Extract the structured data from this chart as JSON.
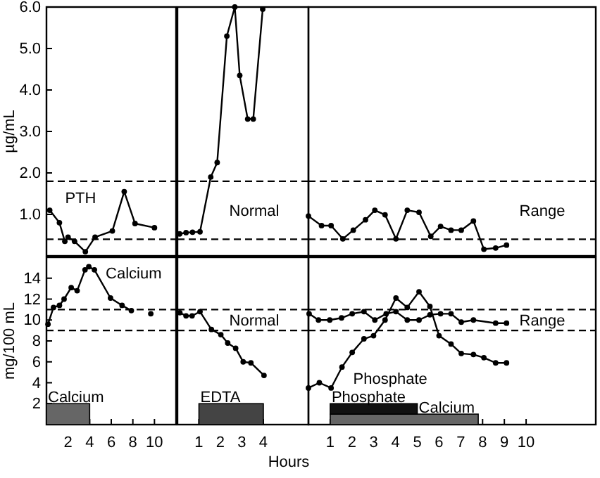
{
  "chart_data": [
    {
      "type": "line",
      "ylabel": "µg/mL",
      "xlim": [
        0,
        12
      ],
      "ylim": [
        0,
        6
      ],
      "yticks": [
        {
          "value": 1,
          "label": "1.0"
        },
        {
          "value": 2,
          "label": "2.0"
        },
        {
          "value": 3,
          "label": "3.0"
        },
        {
          "value": 4,
          "label": "4.0"
        },
        {
          "value": 5,
          "label": "5.0"
        },
        {
          "value": 6,
          "label": "6.0"
        }
      ],
      "tick_labels": "y",
      "marker": "circle",
      "series": [
        {
          "name": "PTH",
          "color": "#000000",
          "x": [
            0.3,
            1.2,
            1.7,
            2.0,
            2.6,
            3.6,
            4.5,
            6.1,
            7.2,
            8.2,
            10.0
          ],
          "values": [
            1.1,
            0.8,
            0.35,
            0.45,
            0.35,
            0.1,
            0.45,
            0.6,
            1.55,
            0.78,
            0.68
          ]
        }
      ],
      "ref_lines": [
        {
          "axis": "y",
          "value": 1.8,
          "line_style": "dashed"
        },
        {
          "axis": "y",
          "value": 0.4,
          "line_style": "dashed"
        }
      ]
    },
    {
      "type": "line",
      "xlim": [
        0,
        6.1
      ],
      "ylim": [
        0,
        6
      ],
      "tick_labels": false,
      "marker": "circle",
      "series": [
        {
          "color": "#000000",
          "x": [
            0.1,
            0.4,
            0.7,
            1.05,
            1.55,
            1.85,
            2.3,
            2.67,
            2.9,
            3.27,
            3.53,
            3.97
          ],
          "values": [
            0.53,
            0.56,
            0.57,
            0.58,
            1.9,
            2.25,
            5.3,
            6.0,
            4.35,
            3.3,
            3.3,
            5.95
          ]
        }
      ],
      "ref_lines": [
        {
          "axis": "y",
          "value": 1.8,
          "line_style": "dashed",
          "label": "Normal"
        },
        {
          "axis": "y",
          "value": 0.4,
          "line_style": "dashed"
        }
      ]
    },
    {
      "type": "line",
      "xlim": [
        0,
        13.2
      ],
      "ylim": [
        0,
        6
      ],
      "tick_labels": false,
      "marker": "circle",
      "series": [
        {
          "color": "#000000",
          "x": [
            0,
            0.6,
            1.04,
            1.58,
            2.06,
            2.62,
            3.05,
            3.52,
            4.02,
            4.54,
            5.08,
            5.62,
            6.07,
            6.55,
            7.02,
            7.58,
            8.06,
            8.6,
            9.1
          ],
          "values": [
            0.96,
            0.73,
            0.73,
            0.41,
            0.62,
            0.87,
            1.1,
            0.99,
            0.41,
            1.1,
            1.05,
            0.47,
            0.71,
            0.62,
            0.62,
            0.84,
            0.16,
            0.19,
            0.26
          ]
        }
      ],
      "ref_lines": [
        {
          "axis": "y",
          "value": 1.8,
          "line_style": "dashed",
          "label": "Range"
        },
        {
          "axis": "y",
          "value": 0.4,
          "line_style": "dashed"
        }
      ]
    },
    {
      "type": "line",
      "ylabel": "mg/100 mL",
      "xlim": [
        0,
        12
      ],
      "ylim": [
        0,
        16
      ],
      "xticks": [
        2,
        4,
        6,
        8,
        10
      ],
      "yticks": [
        2,
        4,
        6,
        8,
        10,
        12,
        14
      ],
      "marker": "circle",
      "series": [
        {
          "name": "Calcium",
          "color": "#000000",
          "x": [
            0.14,
            0.65,
            1.2,
            1.63,
            2.29,
            2.84,
            3.57,
            3.92,
            4.44,
            5.93,
            7.0,
            7.86,
            8.8,
            9.66
          ],
          "values": [
            9.6,
            11.2,
            11.4,
            12.0,
            13.1,
            12.8,
            14.8,
            15.1,
            14.8,
            12.1,
            11.4,
            10.9,
            null,
            10.6
          ]
        }
      ],
      "ref_lines": [
        {
          "axis": "y",
          "value": 11,
          "line_style": "dashed"
        },
        {
          "axis": "y",
          "value": 9,
          "line_style": "dashed"
        }
      ],
      "bands": [
        {
          "axis": "x",
          "from": 0,
          "to": 4,
          "label": "Calcium",
          "color": "#666666"
        }
      ]
    },
    {
      "type": "line",
      "xlabel": "Hours",
      "xlim": [
        0,
        6.1
      ],
      "ylim": [
        0,
        16
      ],
      "xticks": [
        1,
        2,
        3,
        4
      ],
      "tick_labels": "x",
      "marker": "circle",
      "series": [
        {
          "color": "#000000",
          "x": [
            0.11,
            0.4,
            0.68,
            1.05,
            1.58,
            2.02,
            2.34,
            2.71,
            3.06,
            3.42,
            4.03
          ],
          "values": [
            10.7,
            10.4,
            10.4,
            10.8,
            9.1,
            8.6,
            7.8,
            7.3,
            6.0,
            5.9,
            4.7
          ]
        }
      ],
      "ref_lines": [
        {
          "axis": "y",
          "value": 11,
          "line_style": "dashed",
          "label": "Normal"
        },
        {
          "axis": "y",
          "value": 9,
          "line_style": "dashed"
        }
      ],
      "bands": [
        {
          "axis": "x",
          "from": 1,
          "to": 4,
          "label": "EDTA",
          "color": "#444444"
        }
      ]
    },
    {
      "type": "line",
      "xlim": [
        0,
        13.2
      ],
      "ylim": [
        0,
        16
      ],
      "xticks": [
        1,
        2,
        3,
        4,
        5,
        6,
        7,
        8,
        9,
        10
      ],
      "tick_labels": "x",
      "marker": "circle",
      "series": [
        {
          "color": "#000000",
          "x": [
            0.03,
            0.46,
            0.98,
            1.52,
            2.01,
            2.55,
            3.05,
            3.57,
            4.02,
            4.54,
            5.08,
            5.58,
            6.07,
            6.55,
            7.02,
            7.58,
            8.6,
            9.1
          ],
          "values": [
            10.6,
            10.0,
            10.0,
            10.2,
            10.6,
            10.8,
            10.0,
            10.6,
            10.8,
            10.0,
            10.0,
            10.5,
            10.6,
            10.6,
            9.8,
            10.0,
            9.7,
            9.7
          ]
        },
        {
          "name": "Phosphate",
          "color": "#000000",
          "x": [
            0,
            0.5,
            1.04,
            1.54,
            2.01,
            2.55,
            2.99,
            3.52,
            4.02,
            4.54,
            5.08,
            5.58,
            6.0,
            6.55,
            7.02,
            7.58,
            8.06,
            8.6,
            9.1
          ],
          "values": [
            3.5,
            4.0,
            3.5,
            5.5,
            6.9,
            8.2,
            8.5,
            10.0,
            12.1,
            11.2,
            12.7,
            11.3,
            8.5,
            7.7,
            6.8,
            6.7,
            6.4,
            5.9,
            5.9
          ]
        }
      ],
      "ref_lines": [
        {
          "axis": "y",
          "value": 11,
          "line_style": "dashed",
          "label": "Range"
        },
        {
          "axis": "y",
          "value": 9,
          "line_style": "dashed"
        }
      ],
      "bands": [
        {
          "axis": "x",
          "from": 1,
          "to": 7.8,
          "label": "Calcium",
          "color": "#666666"
        },
        {
          "axis": "x",
          "from": 1,
          "to": 5,
          "label": "Phosphate",
          "color": "#111111"
        }
      ]
    }
  ]
}
